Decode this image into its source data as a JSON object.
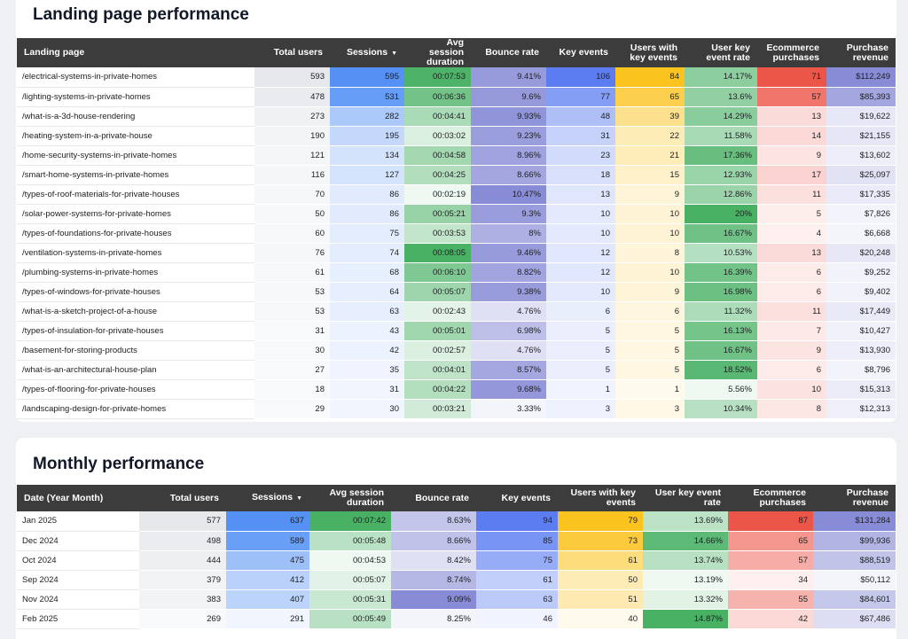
{
  "landing": {
    "title": "Landing page performance",
    "headers": {
      "page": "Landing page",
      "users": "Total users",
      "sessions": "Sessions",
      "sort_arrow": "▼",
      "avg": "Avg session duration",
      "bounce": "Bounce rate",
      "key": "Key events",
      "uwk": "Users with key events",
      "ukr": "User key event rate",
      "ecom": "Ecommerce purchases",
      "rev": "Purchase revenue"
    },
    "rows": [
      {
        "page": "/electrical-systems-in-private-homes",
        "users": "593",
        "sessions": "595",
        "avg": "00:07:53",
        "bounce": "9.41%",
        "key": "106",
        "uwk": "84",
        "ukr": "14.17%",
        "ecom": "71",
        "rev": "$112,249"
      },
      {
        "page": "/lighting-systems-in-private-homes",
        "users": "478",
        "sessions": "531",
        "avg": "00:06:36",
        "bounce": "9.6%",
        "key": "77",
        "uwk": "65",
        "ukr": "13.6%",
        "ecom": "57",
        "rev": "$85,393"
      },
      {
        "page": "/what-is-a-3d-house-rendering",
        "users": "273",
        "sessions": "282",
        "avg": "00:04:41",
        "bounce": "9.93%",
        "key": "48",
        "uwk": "39",
        "ukr": "14.29%",
        "ecom": "13",
        "rev": "$19,622"
      },
      {
        "page": "/heating-system-in-a-private-house",
        "users": "190",
        "sessions": "195",
        "avg": "00:03:02",
        "bounce": "9.23%",
        "key": "31",
        "uwk": "22",
        "ukr": "11.58%",
        "ecom": "14",
        "rev": "$21,155"
      },
      {
        "page": "/home-security-systems-in-private-homes",
        "users": "121",
        "sessions": "134",
        "avg": "00:04:58",
        "bounce": "8.96%",
        "key": "23",
        "uwk": "21",
        "ukr": "17.36%",
        "ecom": "9",
        "rev": "$13,602"
      },
      {
        "page": "/smart-home-systems-in-private-homes",
        "users": "116",
        "sessions": "127",
        "avg": "00:04:25",
        "bounce": "8.66%",
        "key": "18",
        "uwk": "15",
        "ukr": "12.93%",
        "ecom": "17",
        "rev": "$25,097"
      },
      {
        "page": "/types-of-roof-materials-for-private-houses",
        "users": "70",
        "sessions": "86",
        "avg": "00:02:19",
        "bounce": "10.47%",
        "key": "13",
        "uwk": "9",
        "ukr": "12.86%",
        "ecom": "11",
        "rev": "$17,335"
      },
      {
        "page": "/solar-power-systems-for-private-homes",
        "users": "50",
        "sessions": "86",
        "avg": "00:05:21",
        "bounce": "9.3%",
        "key": "10",
        "uwk": "10",
        "ukr": "20%",
        "ecom": "5",
        "rev": "$7,826"
      },
      {
        "page": "/types-of-foundations-for-private-houses",
        "users": "60",
        "sessions": "75",
        "avg": "00:03:53",
        "bounce": "8%",
        "key": "10",
        "uwk": "10",
        "ukr": "16.67%",
        "ecom": "4",
        "rev": "$6,668"
      },
      {
        "page": "/ventilation-systems-in-private-homes",
        "users": "76",
        "sessions": "74",
        "avg": "00:08:05",
        "bounce": "9.46%",
        "key": "12",
        "uwk": "8",
        "ukr": "10.53%",
        "ecom": "13",
        "rev": "$20,248"
      },
      {
        "page": "/plumbing-systems-in-private-homes",
        "users": "61",
        "sessions": "68",
        "avg": "00:06:10",
        "bounce": "8.82%",
        "key": "12",
        "uwk": "10",
        "ukr": "16.39%",
        "ecom": "6",
        "rev": "$9,252"
      },
      {
        "page": "/types-of-windows-for-private-houses",
        "users": "53",
        "sessions": "64",
        "avg": "00:05:07",
        "bounce": "9.38%",
        "key": "10",
        "uwk": "9",
        "ukr": "16.98%",
        "ecom": "6",
        "rev": "$9,402"
      },
      {
        "page": "/what-is-a-sketch-project-of-a-house",
        "users": "53",
        "sessions": "63",
        "avg": "00:02:43",
        "bounce": "4.76%",
        "key": "6",
        "uwk": "6",
        "ukr": "11.32%",
        "ecom": "11",
        "rev": "$17,449"
      },
      {
        "page": "/types-of-insulation-for-private-houses",
        "users": "31",
        "sessions": "43",
        "avg": "00:05:01",
        "bounce": "6.98%",
        "key": "5",
        "uwk": "5",
        "ukr": "16.13%",
        "ecom": "7",
        "rev": "$10,427"
      },
      {
        "page": "/basement-for-storing-products",
        "users": "30",
        "sessions": "42",
        "avg": "00:02:57",
        "bounce": "4.76%",
        "key": "5",
        "uwk": "5",
        "ukr": "16.67%",
        "ecom": "9",
        "rev": "$13,930"
      },
      {
        "page": "/what-is-an-architectural-house-plan",
        "users": "27",
        "sessions": "35",
        "avg": "00:04:01",
        "bounce": "8.57%",
        "key": "5",
        "uwk": "5",
        "ukr": "18.52%",
        "ecom": "6",
        "rev": "$8,796"
      },
      {
        "page": "/types-of-flooring-for-private-houses",
        "users": "18",
        "sessions": "31",
        "avg": "00:04:22",
        "bounce": "9.68%",
        "key": "1",
        "uwk": "1",
        "ukr": "5.56%",
        "ecom": "10",
        "rev": "$15,313"
      },
      {
        "page": "/landscaping-design-for-private-homes",
        "users": "29",
        "sessions": "30",
        "avg": "00:03:21",
        "bounce": "3.33%",
        "key": "3",
        "uwk": "3",
        "ukr": "10.34%",
        "ecom": "8",
        "rev": "$12,313"
      }
    ]
  },
  "monthly": {
    "title": "Monthly performance",
    "headers": {
      "date": "Date (Year Month)",
      "users": "Total users",
      "sessions": "Sessions",
      "sort_arrow": "▼",
      "avg": "Avg session duration",
      "bounce": "Bounce rate",
      "key": "Key events",
      "uwk": "Users with key events",
      "ukr": "User key event rate",
      "ecom": "Ecommerce purchases",
      "rev": "Purchase revenue"
    },
    "rows": [
      {
        "date": "Jan 2025",
        "users": "577",
        "sessions": "637",
        "avg": "00:07:42",
        "bounce": "8.63%",
        "key": "94",
        "uwk": "79",
        "ukr": "13.69%",
        "ecom": "87",
        "rev": "$131,284"
      },
      {
        "date": "Dec 2024",
        "users": "498",
        "sessions": "589",
        "avg": "00:05:48",
        "bounce": "8.66%",
        "key": "85",
        "uwk": "73",
        "ukr": "14.66%",
        "ecom": "65",
        "rev": "$99,936"
      },
      {
        "date": "Oct 2024",
        "users": "444",
        "sessions": "475",
        "avg": "00:04:53",
        "bounce": "8.42%",
        "key": "75",
        "uwk": "61",
        "ukr": "13.74%",
        "ecom": "57",
        "rev": "$88,519"
      },
      {
        "date": "Sep 2024",
        "users": "379",
        "sessions": "412",
        "avg": "00:05:07",
        "bounce": "8.74%",
        "key": "61",
        "uwk": "50",
        "ukr": "13.19%",
        "ecom": "34",
        "rev": "$50,112"
      },
      {
        "date": "Nov 2024",
        "users": "383",
        "sessions": "407",
        "avg": "00:05:31",
        "bounce": "9.09%",
        "key": "63",
        "uwk": "51",
        "ukr": "13.32%",
        "ecom": "55",
        "rev": "$84,601"
      },
      {
        "date": "Feb 2025",
        "users": "269",
        "sessions": "291",
        "avg": "00:05:49",
        "bounce": "8.25%",
        "key": "46",
        "uwk": "40",
        "ukr": "14.87%",
        "ecom": "42",
        "rev": "$67,486"
      }
    ]
  },
  "colors": {
    "users": "#5f6368",
    "sessions": "#4285f4",
    "avg": "#34a853",
    "bounce": "#7b7fd1",
    "key": "#4a6ff0",
    "uwk": "#fbbc04",
    "ukr": "#34a853",
    "ecom": "#ea4335",
    "rev": "#7b7fd1"
  }
}
